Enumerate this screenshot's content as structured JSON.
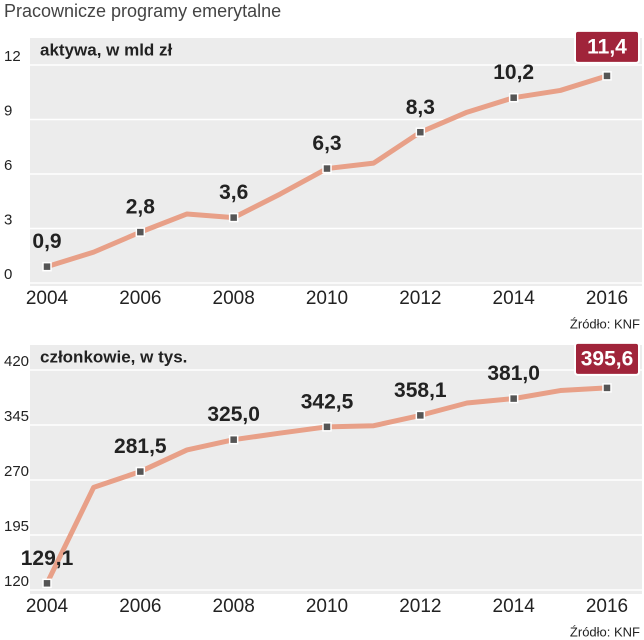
{
  "title": "Pracownicze programy emerytalne",
  "chart_data": [
    {
      "type": "line",
      "subtitle": "aktywa, w mld zł",
      "source": "Źródło: KNF",
      "x": [
        2004,
        2005,
        2006,
        2007,
        2008,
        2009,
        2010,
        2011,
        2012,
        2013,
        2014,
        2015,
        2016
      ],
      "series": [
        {
          "name": null,
          "color": "#e8a088",
          "values": [
            0.9,
            1.7,
            2.8,
            3.8,
            3.6,
            4.9,
            6.3,
            6.6,
            8.3,
            9.4,
            10.2,
            10.6,
            11.4
          ],
          "value_labels": [
            "0,9",
            null,
            "2,8",
            null,
            "3,6",
            null,
            "6,3",
            null,
            "8,3",
            null,
            "10,2",
            null,
            "11,4"
          ]
        }
      ],
      "xlim": [
        2004,
        2016
      ],
      "xticks": [
        2004,
        2006,
        2008,
        2010,
        2012,
        2014,
        2016
      ],
      "ylim": [
        0,
        12
      ],
      "yticks": [
        0,
        3,
        6,
        9,
        12
      ],
      "grid": true
    },
    {
      "type": "line",
      "subtitle": "członkowie, w tys.",
      "source": "Źródło: KNF",
      "x": [
        2004,
        2005,
        2006,
        2007,
        2008,
        2009,
        2010,
        2011,
        2012,
        2013,
        2014,
        2015,
        2016
      ],
      "series": [
        {
          "name": null,
          "color": "#e8a088",
          "values": [
            129.1,
            260,
            281.5,
            311,
            325.0,
            334,
            342.5,
            344,
            358.1,
            375,
            381.0,
            392,
            395.6
          ],
          "value_labels": [
            "129,1",
            null,
            "281,5",
            null,
            "325,0",
            null,
            "342,5",
            null,
            "358,1",
            null,
            "381,0",
            null,
            "395,6"
          ]
        }
      ],
      "xlim": [
        2004,
        2016
      ],
      "xticks": [
        2004,
        2006,
        2008,
        2010,
        2012,
        2014,
        2016
      ],
      "ylim": [
        120,
        420
      ],
      "yticks": [
        120,
        195,
        270,
        345,
        420
      ],
      "grid": true
    }
  ]
}
